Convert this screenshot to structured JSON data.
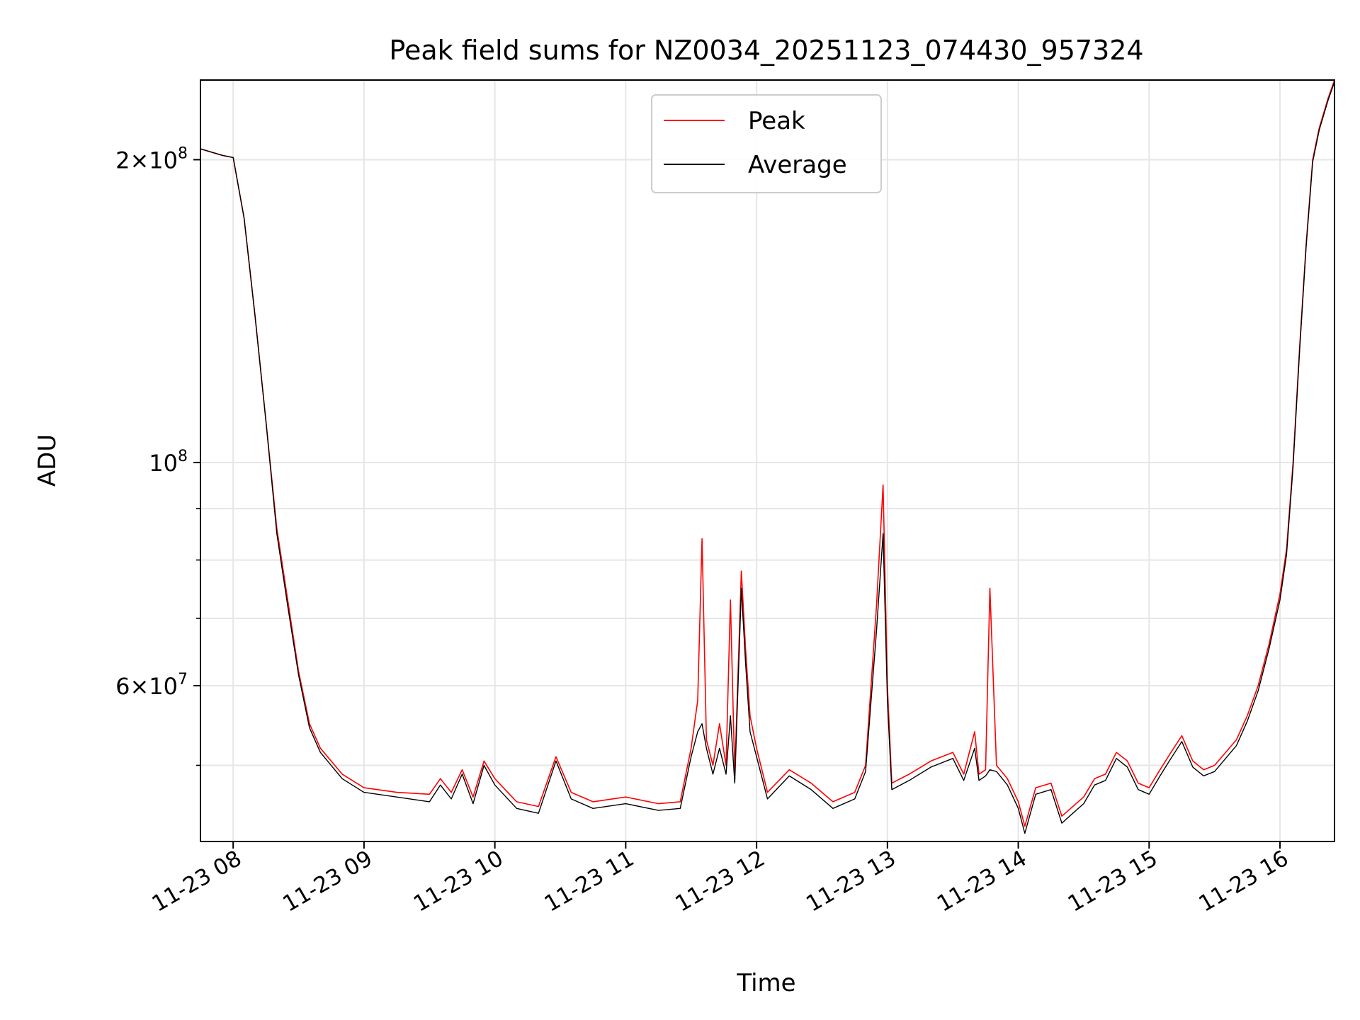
{
  "chart_data": {
    "type": "line",
    "title": "Peak field sums for NZ0034_20251123_074430_957324",
    "xlabel": "Time",
    "ylabel": "ADU",
    "y_scale": "log",
    "grid": true,
    "legend_position": "top-center",
    "xlim": [
      "2025-11-23 07:45",
      "2025-11-23 16:25"
    ],
    "ylim": [
      42000000,
      240000000
    ],
    "x_ticks": [
      {
        "value": "2025-11-23 08:00",
        "label": "11-23 08"
      },
      {
        "value": "2025-11-23 09:00",
        "label": "11-23 09"
      },
      {
        "value": "2025-11-23 10:00",
        "label": "11-23 10"
      },
      {
        "value": "2025-11-23 11:00",
        "label": "11-23 11"
      },
      {
        "value": "2025-11-23 12:00",
        "label": "11-23 12"
      },
      {
        "value": "2025-11-23 13:00",
        "label": "11-23 13"
      },
      {
        "value": "2025-11-23 14:00",
        "label": "11-23 14"
      },
      {
        "value": "2025-11-23 15:00",
        "label": "11-23 15"
      },
      {
        "value": "2025-11-23 16:00",
        "label": "11-23 16"
      }
    ],
    "y_major_ticks": [
      {
        "value": 200000000,
        "mantissa": "2",
        "exponent": "8"
      },
      {
        "value": 100000000,
        "mantissa": "",
        "exponent": "8"
      },
      {
        "value": 60000000,
        "mantissa": "6",
        "exponent": "7"
      }
    ],
    "y_minor_ticks": [
      50000000,
      70000000,
      80000000,
      90000000
    ],
    "series": [
      {
        "name": "Peak",
        "color": "#ff0000",
        "points": [
          [
            "07:45",
            205000000
          ],
          [
            "07:55",
            202000000
          ],
          [
            "08:00",
            201000000
          ],
          [
            "08:05",
            175000000
          ],
          [
            "08:10",
            140000000
          ],
          [
            "08:15",
            110000000
          ],
          [
            "08:20",
            86000000
          ],
          [
            "08:25",
            73000000
          ],
          [
            "08:30",
            62000000
          ],
          [
            "08:35",
            55000000
          ],
          [
            "08:40",
            52000000
          ],
          [
            "08:50",
            49000000
          ],
          [
            "09:00",
            47500000
          ],
          [
            "09:15",
            47000000
          ],
          [
            "09:30",
            46800000
          ],
          [
            "09:35",
            48500000
          ],
          [
            "09:40",
            47000000
          ],
          [
            "09:45",
            49500000
          ],
          [
            "09:50",
            46500000
          ],
          [
            "09:55",
            50500000
          ],
          [
            "10:00",
            48500000
          ],
          [
            "10:10",
            46000000
          ],
          [
            "10:20",
            45500000
          ],
          [
            "10:28",
            51000000
          ],
          [
            "10:35",
            47000000
          ],
          [
            "10:45",
            46000000
          ],
          [
            "11:00",
            46500000
          ],
          [
            "11:15",
            45800000
          ],
          [
            "11:25",
            46000000
          ],
          [
            "11:30",
            52000000
          ],
          [
            "11:33",
            58000000
          ],
          [
            "11:35",
            84000000
          ],
          [
            "11:37",
            53000000
          ],
          [
            "11:40",
            50000000
          ],
          [
            "11:43",
            55000000
          ],
          [
            "11:46",
            50000000
          ],
          [
            "11:48",
            73000000
          ],
          [
            "11:50",
            49000000
          ],
          [
            "11:53",
            78000000
          ],
          [
            "11:55",
            65000000
          ],
          [
            "11:57",
            56000000
          ],
          [
            "12:00",
            52000000
          ],
          [
            "12:05",
            47000000
          ],
          [
            "12:15",
            49500000
          ],
          [
            "12:25",
            48000000
          ],
          [
            "12:35",
            46000000
          ],
          [
            "12:45",
            47000000
          ],
          [
            "12:50",
            50000000
          ],
          [
            "12:55",
            72000000
          ],
          [
            "12:58",
            95000000
          ],
          [
            "13:00",
            60000000
          ],
          [
            "13:02",
            48000000
          ],
          [
            "13:10",
            49000000
          ],
          [
            "13:20",
            50500000
          ],
          [
            "13:30",
            51500000
          ],
          [
            "13:35",
            49000000
          ],
          [
            "13:40",
            54000000
          ],
          [
            "13:42",
            49000000
          ],
          [
            "13:45",
            49500000
          ],
          [
            "13:47",
            75000000
          ],
          [
            "13:50",
            50000000
          ],
          [
            "13:55",
            48500000
          ],
          [
            "14:00",
            46000000
          ],
          [
            "14:03",
            43500000
          ],
          [
            "14:08",
            47500000
          ],
          [
            "14:15",
            48000000
          ],
          [
            "14:20",
            44500000
          ],
          [
            "14:25",
            45500000
          ],
          [
            "14:30",
            46500000
          ],
          [
            "14:35",
            48500000
          ],
          [
            "14:40",
            49000000
          ],
          [
            "14:45",
            51500000
          ],
          [
            "14:50",
            50500000
          ],
          [
            "14:55",
            48000000
          ],
          [
            "15:00",
            47500000
          ],
          [
            "15:05",
            49500000
          ],
          [
            "15:10",
            51500000
          ],
          [
            "15:15",
            53500000
          ],
          [
            "15:20",
            50500000
          ],
          [
            "15:25",
            49500000
          ],
          [
            "15:30",
            50000000
          ],
          [
            "15:40",
            53000000
          ],
          [
            "15:45",
            56000000
          ],
          [
            "15:50",
            60000000
          ],
          [
            "15:55",
            66000000
          ],
          [
            "16:00",
            74000000
          ],
          [
            "16:03",
            82000000
          ],
          [
            "16:06",
            100000000
          ],
          [
            "16:09",
            130000000
          ],
          [
            "16:12",
            165000000
          ],
          [
            "16:15",
            200000000
          ],
          [
            "16:18",
            215000000
          ],
          [
            "16:22",
            230000000
          ],
          [
            "16:25",
            240000000
          ]
        ]
      },
      {
        "name": "Average",
        "color": "#000000",
        "points": [
          [
            "07:45",
            205000000
          ],
          [
            "07:55",
            202000000
          ],
          [
            "08:00",
            201000000
          ],
          [
            "08:05",
            175000000
          ],
          [
            "08:10",
            140000000
          ],
          [
            "08:15",
            110000000
          ],
          [
            "08:20",
            85000000
          ],
          [
            "08:25",
            72000000
          ],
          [
            "08:30",
            61500000
          ],
          [
            "08:35",
            54500000
          ],
          [
            "08:40",
            51500000
          ],
          [
            "08:50",
            48500000
          ],
          [
            "09:00",
            47000000
          ],
          [
            "09:15",
            46500000
          ],
          [
            "09:30",
            46000000
          ],
          [
            "09:35",
            47800000
          ],
          [
            "09:40",
            46300000
          ],
          [
            "09:45",
            49000000
          ],
          [
            "09:50",
            45800000
          ],
          [
            "09:55",
            50000000
          ],
          [
            "10:00",
            47800000
          ],
          [
            "10:10",
            45300000
          ],
          [
            "10:20",
            44800000
          ],
          [
            "10:28",
            50500000
          ],
          [
            "10:35",
            46300000
          ],
          [
            "10:45",
            45300000
          ],
          [
            "11:00",
            45800000
          ],
          [
            "11:15",
            45100000
          ],
          [
            "11:25",
            45300000
          ],
          [
            "11:30",
            51000000
          ],
          [
            "11:33",
            54000000
          ],
          [
            "11:35",
            55000000
          ],
          [
            "11:37",
            52000000
          ],
          [
            "11:40",
            49000000
          ],
          [
            "11:43",
            52000000
          ],
          [
            "11:46",
            49000000
          ],
          [
            "11:48",
            56000000
          ],
          [
            "11:50",
            48000000
          ],
          [
            "11:53",
            75000000
          ],
          [
            "11:55",
            63000000
          ],
          [
            "11:57",
            54000000
          ],
          [
            "12:00",
            51000000
          ],
          [
            "12:05",
            46300000
          ],
          [
            "12:15",
            48800000
          ],
          [
            "12:25",
            47300000
          ],
          [
            "12:35",
            45300000
          ],
          [
            "12:45",
            46300000
          ],
          [
            "12:50",
            49300000
          ],
          [
            "12:55",
            68000000
          ],
          [
            "12:58",
            85000000
          ],
          [
            "13:00",
            58000000
          ],
          [
            "13:02",
            47300000
          ],
          [
            "13:10",
            48300000
          ],
          [
            "13:20",
            49800000
          ],
          [
            "13:30",
            50800000
          ],
          [
            "13:35",
            48300000
          ],
          [
            "13:40",
            52000000
          ],
          [
            "13:42",
            48300000
          ],
          [
            "13:45",
            48800000
          ],
          [
            "13:47",
            49500000
          ],
          [
            "13:50",
            49300000
          ],
          [
            "13:55",
            47800000
          ],
          [
            "14:00",
            45300000
          ],
          [
            "14:03",
            42800000
          ],
          [
            "14:08",
            46800000
          ],
          [
            "14:15",
            47300000
          ],
          [
            "14:20",
            43800000
          ],
          [
            "14:25",
            44800000
          ],
          [
            "14:30",
            45800000
          ],
          [
            "14:35",
            47800000
          ],
          [
            "14:40",
            48300000
          ],
          [
            "14:45",
            50800000
          ],
          [
            "14:50",
            49800000
          ],
          [
            "14:55",
            47300000
          ],
          [
            "15:00",
            46800000
          ],
          [
            "15:05",
            48800000
          ],
          [
            "15:10",
            50800000
          ],
          [
            "15:15",
            52800000
          ],
          [
            "15:20",
            49800000
          ],
          [
            "15:25",
            48800000
          ],
          [
            "15:30",
            49300000
          ],
          [
            "15:40",
            52300000
          ],
          [
            "15:45",
            55300000
          ],
          [
            "15:50",
            59300000
          ],
          [
            "15:55",
            65300000
          ],
          [
            "16:00",
            73000000
          ],
          [
            "16:03",
            81000000
          ],
          [
            "16:06",
            99000000
          ],
          [
            "16:09",
            129000000
          ],
          [
            "16:12",
            164000000
          ],
          [
            "16:15",
            199000000
          ],
          [
            "16:18",
            214000000
          ],
          [
            "16:22",
            229000000
          ],
          [
            "16:25",
            239000000
          ]
        ]
      }
    ]
  }
}
